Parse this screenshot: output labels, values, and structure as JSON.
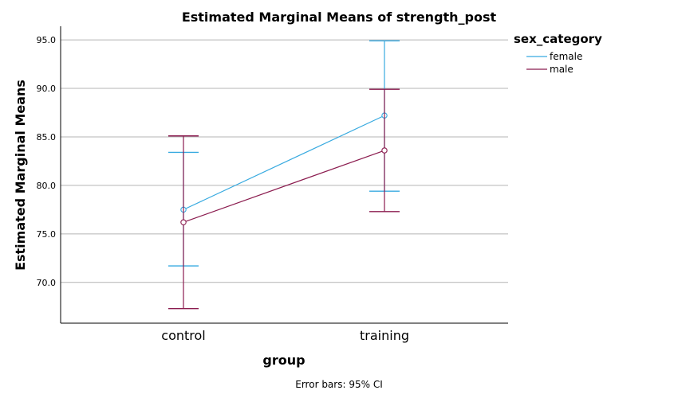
{
  "chart_data": {
    "type": "line",
    "title": "Estimated Marginal Means of strength_post",
    "xlabel": "group",
    "ylabel": "Estimated Marginal Means",
    "categories": [
      "control",
      "training"
    ],
    "ylim": [
      65.8,
      96.4
    ],
    "yticks": [
      70.0,
      75.0,
      80.0,
      85.0,
      90.0,
      95.0
    ],
    "ytick_labels": [
      "70.0",
      "75.0",
      "80.0",
      "85.0",
      "90.0",
      "95.0"
    ],
    "grid": "horizontal",
    "legend": {
      "title": "sex_category",
      "placement": "top-right outside"
    },
    "footnote": "Error bars: 95% CI",
    "series": [
      {
        "name": "female",
        "color": "#38AAE0",
        "values": [
          77.5,
          87.2
        ],
        "ci_lower": [
          71.7,
          79.4
        ],
        "ci_upper": [
          83.4,
          94.9
        ]
      },
      {
        "name": "male",
        "color": "#8B1C4F",
        "values": [
          76.2,
          83.6
        ],
        "ci_lower": [
          67.3,
          77.3
        ],
        "ci_upper": [
          85.1,
          89.9
        ]
      }
    ]
  }
}
